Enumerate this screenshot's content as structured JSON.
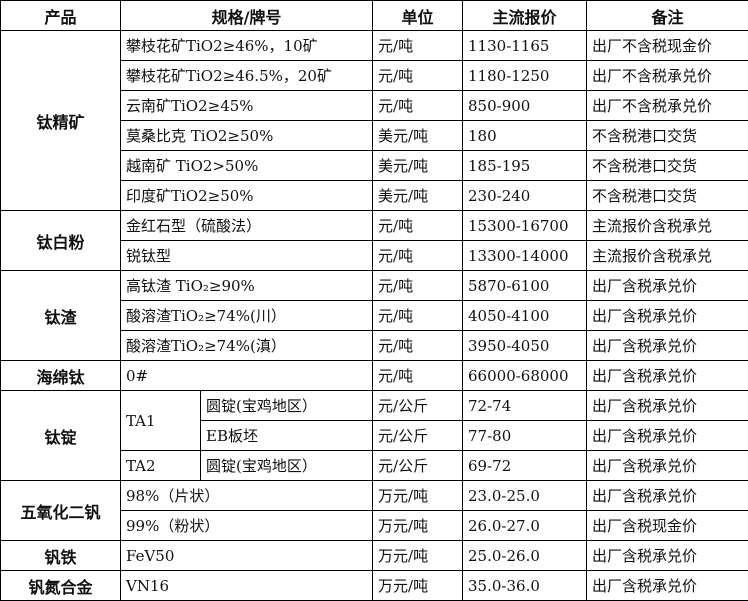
{
  "headers": {
    "product": "产品",
    "spec": "规格/牌号",
    "unit": "单位",
    "price": "主流报价",
    "note": "备注"
  },
  "groups": [
    {
      "product": "钛精矿",
      "rows": [
        {
          "spec": "攀枝花矿TiO2≥46%，10矿",
          "unit": "元/吨",
          "price": "1130-1165",
          "note": "出厂不含税现金价"
        },
        {
          "spec": "攀枝花矿TiO2≥46.5%，20矿",
          "unit": "元/吨",
          "price": "1180-1250",
          "note": "出厂不含税承兑价"
        },
        {
          "spec": "云南矿TiO2≥45%",
          "unit": "元/吨",
          "price": "850-900",
          "note": "出厂不含税承兑价"
        },
        {
          "spec": "莫桑比克 TiO2≥50%",
          "unit": "美元/吨",
          "price": "180",
          "note": "不含税港口交货"
        },
        {
          "spec": "越南矿 TiO2>50%",
          "unit": "美元/吨",
          "price": "185-195",
          "note": "不含税港口交货"
        },
        {
          "spec": "印度矿TiO2≥50%",
          "unit": "美元/吨",
          "price": "230-240",
          "note": "不含税港口交货"
        }
      ]
    },
    {
      "product": "钛白粉",
      "rows": [
        {
          "spec": "金红石型（硫酸法）",
          "unit": "元/吨",
          "price": "15300-16700",
          "note": "主流报价含税承兑"
        },
        {
          "spec": "锐钛型",
          "unit": "元/吨",
          "price": "13300-14000",
          "note": "主流报价含税承兑"
        }
      ]
    },
    {
      "product": "钛渣",
      "rows": [
        {
          "spec": "高钛渣 TiO₂≥90%",
          "unit": "元/吨",
          "price": "5870-6100",
          "note": "出厂含税承兑价"
        },
        {
          "spec": "酸溶渣TiO₂≥74%(川）",
          "unit": "元/吨",
          "price": "4050-4100",
          "note": "出厂含税承兑价"
        },
        {
          "spec": "酸溶渣TiO₂≥74%(滇）",
          "unit": "元/吨",
          "price": "3950-4050",
          "note": "出厂含税承兑价"
        }
      ]
    },
    {
      "product": "海绵钛",
      "rows": [
        {
          "spec": "0#",
          "unit": "元/吨",
          "price": "66000-68000",
          "note": "出厂含税承兑价"
        }
      ]
    },
    {
      "product": "钛锭",
      "rows": [
        {
          "grade": "TA1",
          "grade_span": 2,
          "spec": "圆锭(宝鸡地区）",
          "unit": "元/公斤",
          "price": "72-74",
          "note": "出厂含税承兑价"
        },
        {
          "spec": "EB板坯",
          "unit": "元/公斤",
          "price": "77-80",
          "note": "出厂含税承兑价"
        },
        {
          "grade": "TA2",
          "grade_span": 1,
          "spec": "圆锭(宝鸡地区）",
          "unit": "元/公斤",
          "price": "69-72",
          "note": "出厂含税承兑价"
        }
      ]
    },
    {
      "product": "五氧化二钒",
      "rows": [
        {
          "spec": "98%（片状）",
          "unit": "万元/吨",
          "price": "23.0-25.0",
          "note": "出厂含税承兑价"
        },
        {
          "spec": "99%（粉状）",
          "unit": "万元/吨",
          "price": "26.0-27.0",
          "note": "出厂含税现金价"
        }
      ]
    },
    {
      "product": "钒铁",
      "rows": [
        {
          "spec": "FeV50",
          "unit": "万元/吨",
          "price": "25.0-26.0",
          "note": "出厂含税承兑价"
        }
      ]
    },
    {
      "product": "钒氮合金",
      "rows": [
        {
          "spec": "VN16",
          "unit": "万元/吨",
          "price": "35.0-36.0",
          "note": "出厂含税承兑价"
        }
      ]
    }
  ]
}
